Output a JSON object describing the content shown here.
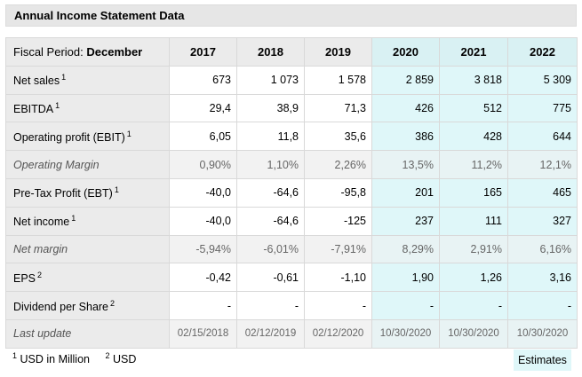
{
  "title": "Annual Income Statement Data",
  "header": {
    "period_label": "Fiscal Period:",
    "period_value": "December",
    "years": [
      "2017",
      "2018",
      "2019",
      "2020",
      "2021",
      "2022"
    ]
  },
  "rows": [
    {
      "label": "Net sales",
      "note": "1",
      "values": [
        "673",
        "1 073",
        "1 578",
        "2 859",
        "3 818",
        "5 309"
      ]
    },
    {
      "label": "EBITDA",
      "note": "1",
      "values": [
        "29,4",
        "38,9",
        "71,3",
        "426",
        "512",
        "775"
      ]
    },
    {
      "label": "Operating profit (EBIT)",
      "note": "1",
      "values": [
        "6,05",
        "11,8",
        "35,6",
        "386",
        "428",
        "644"
      ]
    },
    {
      "label": "Operating Margin",
      "note": "",
      "values": [
        "0,90%",
        "1,10%",
        "2,26%",
        "13,5%",
        "11,2%",
        "12,1%"
      ]
    },
    {
      "label": "Pre-Tax Profit (EBT)",
      "note": "1",
      "values": [
        "-40,0",
        "-64,6",
        "-95,8",
        "201",
        "165",
        "465"
      ]
    },
    {
      "label": "Net income",
      "note": "1",
      "values": [
        "-40,0",
        "-64,6",
        "-125",
        "237",
        "111",
        "327"
      ]
    },
    {
      "label": "Net margin",
      "note": "",
      "values": [
        "-5,94%",
        "-6,01%",
        "-7,91%",
        "8,29%",
        "2,91%",
        "6,16%"
      ]
    },
    {
      "label": "EPS",
      "note": "2",
      "values": [
        "-0,42",
        "-0,61",
        "-1,10",
        "1,90",
        "1,26",
        "3,16"
      ]
    },
    {
      "label": "Dividend per Share",
      "note": "2",
      "values": [
        "-",
        "-",
        "-",
        "-",
        "-",
        "-"
      ]
    },
    {
      "label": "Last update",
      "note": "",
      "values": [
        "02/15/2018",
        "02/12/2019",
        "02/12/2020",
        "10/30/2020",
        "10/30/2020",
        "10/30/2020"
      ]
    }
  ],
  "footnotes": {
    "fn1_mark": "1",
    "fn1_text": "USD in Million",
    "fn2_mark": "2",
    "fn2_text": "USD"
  },
  "legend": {
    "estimates": "Estimates"
  },
  "colors": {
    "estimate_bg": "#dff7f9",
    "label_bg": "#ebebeb",
    "title_bg": "#e6e6e6"
  }
}
